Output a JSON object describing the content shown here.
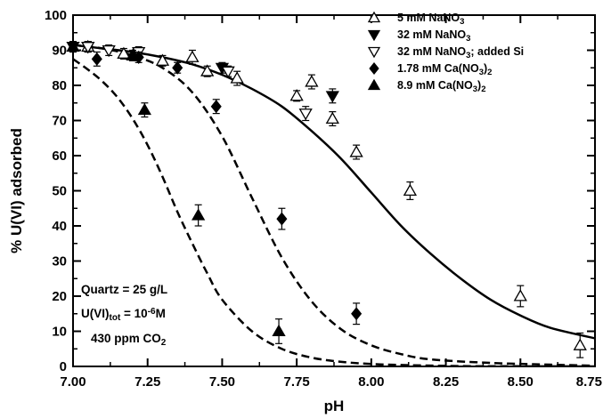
{
  "chart_data": {
    "type": "scatter",
    "title": "",
    "xlabel": "pH",
    "ylabel": "% U(VI) adsorbed",
    "xlim": [
      7.0,
      8.75
    ],
    "ylim": [
      0,
      100
    ],
    "x_ticks": [
      "7.00",
      "7.25",
      "7.50",
      "7.75",
      "8.00",
      "8.25",
      "8.50",
      "8.75"
    ],
    "y_ticks": [
      "0",
      "10",
      "20",
      "30",
      "40",
      "50",
      "60",
      "70",
      "80",
      "90",
      "100"
    ],
    "grid": false,
    "legend_position": "top-right",
    "series": [
      {
        "name": "5 mM NaNO",
        "name_sub": "3",
        "marker": "triangle-up-open",
        "points": [
          {
            "x": 7.05,
            "y": 91,
            "err": 1.5
          },
          {
            "x": 7.17,
            "y": 89,
            "err": 1.5
          },
          {
            "x": 7.3,
            "y": 87,
            "err": 1.5
          },
          {
            "x": 7.4,
            "y": 88,
            "err": 2
          },
          {
            "x": 7.45,
            "y": 84,
            "err": 1.5
          },
          {
            "x": 7.55,
            "y": 82,
            "err": 2
          },
          {
            "x": 7.75,
            "y": 77,
            "err": 1.5
          },
          {
            "x": 7.8,
            "y": 81,
            "err": 2
          },
          {
            "x": 7.87,
            "y": 70.5,
            "err": 2
          },
          {
            "x": 7.95,
            "y": 61,
            "err": 2
          },
          {
            "x": 8.13,
            "y": 50,
            "err": 2.5
          },
          {
            "x": 8.5,
            "y": 20,
            "err": 3
          },
          {
            "x": 8.7,
            "y": 6,
            "err": 3.5
          }
        ]
      },
      {
        "name": "32 mM NaNO",
        "name_sub": "3",
        "marker": "triangle-down-filled",
        "points": [
          {
            "x": 7.0,
            "y": 91,
            "err": 1.5
          },
          {
            "x": 7.05,
            "y": 91,
            "err": 1.5
          },
          {
            "x": 7.5,
            "y": 85,
            "err": 1.5
          },
          {
            "x": 7.87,
            "y": 77,
            "err": 2
          }
        ]
      },
      {
        "name": "32 mM NaNO",
        "name_sub": "3",
        "name_suffix": "; added Si",
        "marker": "triangle-down-open",
        "points": [
          {
            "x": 7.05,
            "y": 91,
            "err": 1.5
          },
          {
            "x": 7.12,
            "y": 90,
            "err": 1.5
          },
          {
            "x": 7.22,
            "y": 89.5,
            "err": 1.5
          },
          {
            "x": 7.52,
            "y": 84,
            "err": 1.5
          },
          {
            "x": 7.78,
            "y": 72,
            "err": 2
          }
        ]
      },
      {
        "name": "1.78 mM Ca(NO",
        "name_sub": "3",
        "name_suffix": ")",
        "name_sub2": "2",
        "marker": "diamond-filled",
        "points": [
          {
            "x": 7.08,
            "y": 87.5,
            "err": 2
          },
          {
            "x": 7.22,
            "y": 88,
            "err": 1.5
          },
          {
            "x": 7.35,
            "y": 85,
            "err": 1.5
          },
          {
            "x": 7.48,
            "y": 74,
            "err": 2
          },
          {
            "x": 7.7,
            "y": 42,
            "err": 3
          },
          {
            "x": 7.95,
            "y": 15,
            "err": 3
          }
        ]
      },
      {
        "name": "8.9 mM Ca(NO",
        "name_sub": "3",
        "name_suffix": ")",
        "name_sub2": "2",
        "marker": "triangle-up-filled",
        "points": [
          {
            "x": 7.0,
            "y": 91,
            "err": 1.5
          },
          {
            "x": 7.2,
            "y": 88.5,
            "err": 1.5
          },
          {
            "x": 7.24,
            "y": 73,
            "err": 2
          },
          {
            "x": 7.42,
            "y": 43,
            "err": 3
          },
          {
            "x": 7.69,
            "y": 10,
            "err": 3.5
          }
        ]
      }
    ],
    "curves": [
      {
        "style": "solid",
        "x": [
          7.0,
          7.1,
          7.2,
          7.3,
          7.4,
          7.5,
          7.6,
          7.7,
          7.8,
          7.9,
          8.0,
          8.1,
          8.2,
          8.3,
          8.4,
          8.5,
          8.6,
          8.75
        ],
        "y": [
          91.5,
          90.5,
          89.5,
          88,
          86,
          83,
          79,
          74,
          67,
          59,
          49.5,
          40,
          32,
          25,
          19,
          14.5,
          11,
          8
        ]
      },
      {
        "style": "dashed",
        "x": [
          7.0,
          7.1,
          7.2,
          7.3,
          7.4,
          7.5,
          7.6,
          7.7,
          7.8,
          7.9,
          8.0,
          8.1,
          8.2,
          8.4,
          8.6,
          8.75
        ],
        "y": [
          91.5,
          90.5,
          88.5,
          85,
          78,
          65.5,
          48,
          31,
          18.5,
          10.5,
          6,
          3.5,
          2,
          1,
          0.5,
          0.2
        ]
      },
      {
        "style": "dashed",
        "x": [
          7.0,
          7.05,
          7.1,
          7.15,
          7.2,
          7.25,
          7.3,
          7.35,
          7.4,
          7.45,
          7.5,
          7.6,
          7.7,
          7.8,
          7.9,
          8.0,
          8.1,
          8.3,
          8.5,
          8.75
        ],
        "y": [
          87.5,
          84.5,
          81,
          76.5,
          70.5,
          63,
          54,
          44,
          35,
          26.5,
          19,
          10,
          5,
          2.5,
          1.3,
          0.7,
          0.4,
          0.1,
          0.05,
          0
        ]
      }
    ],
    "annotation": {
      "line1": "Quartz = 25 g/L",
      "line2_a": "U(VI)",
      "line2_sub": "tot",
      "line2_b": " = 10",
      "line2_sup": "-6",
      "line2_c": "M",
      "line3": "430 ppm CO",
      "line3_sub": "2"
    }
  }
}
